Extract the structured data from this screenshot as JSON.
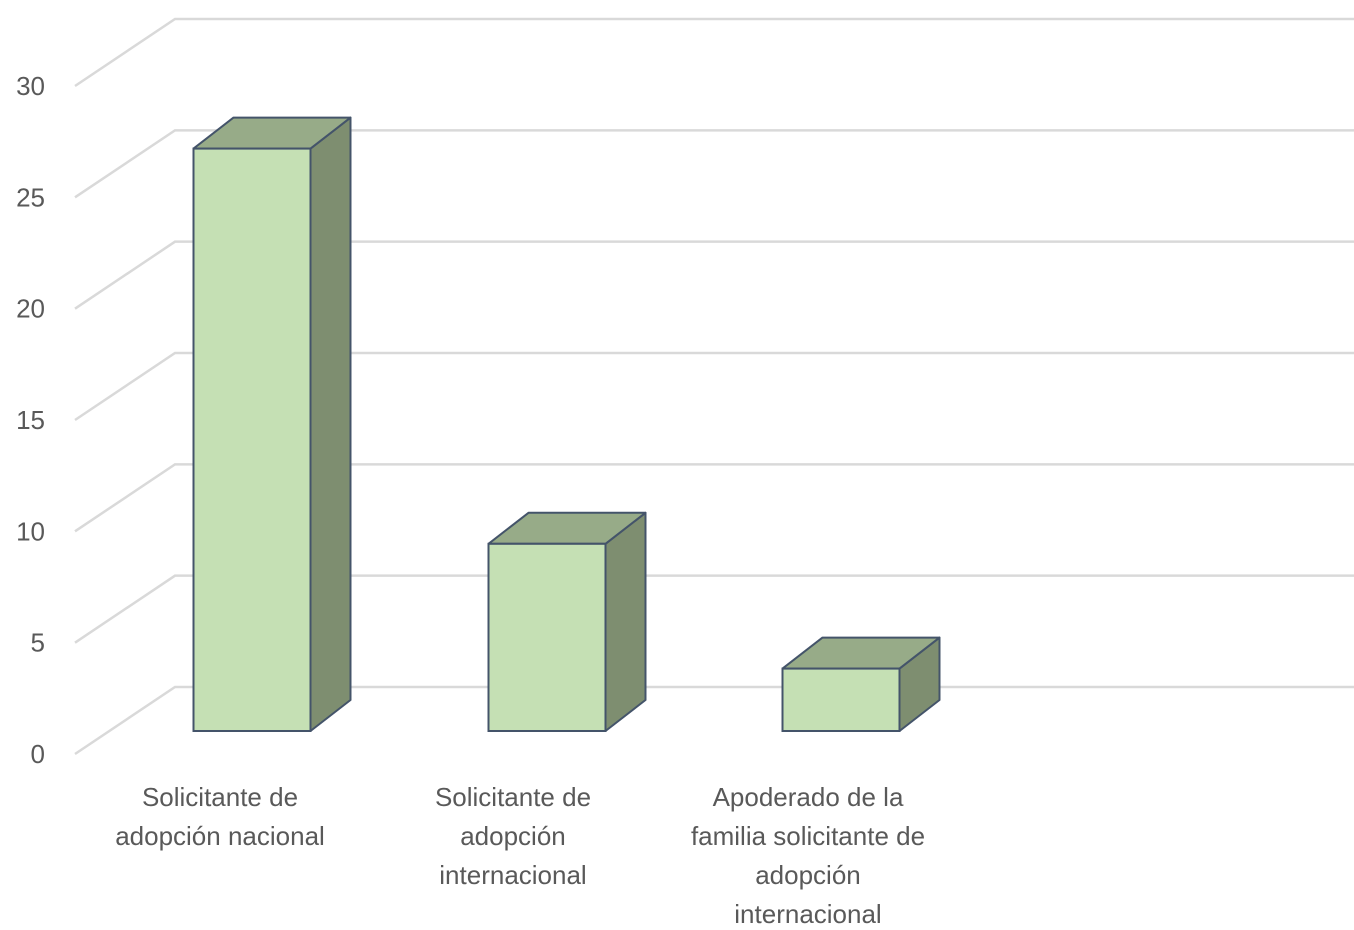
{
  "chart_data": {
    "type": "bar",
    "style": "3d-column",
    "categories": [
      "Solicitante de adopción nacional",
      "Solicitante de adopción internacional",
      "Apoderado de la familia solicitante de adopción internacional"
    ],
    "category_label_lines": [
      [
        "Solicitante de",
        "adopción nacional"
      ],
      [
        "Solicitante de",
        "adopción",
        "internacional"
      ],
      [
        "Apoderado de la",
        "familia solicitante de",
        "adopción",
        "internacional"
      ]
    ],
    "values": [
      28,
      9,
      3
    ],
    "ylim": [
      0,
      30
    ],
    "yticks": [
      0,
      5,
      10,
      15,
      20,
      25,
      30
    ],
    "grid": true,
    "legend": "none",
    "colors": {
      "front": "#c5e0b4",
      "top": "#97ab88",
      "side": "#7e8e70",
      "edge": "#44546a",
      "grid": "#d9d9d9",
      "text": "#595959"
    }
  }
}
